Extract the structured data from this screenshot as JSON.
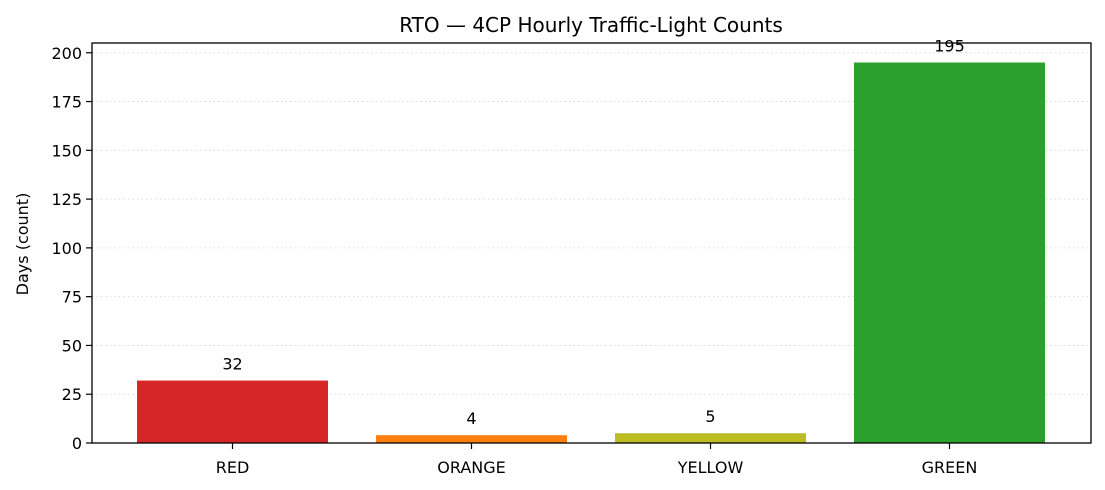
{
  "chart_data": {
    "type": "bar",
    "title": "RTO — 4CP Hourly Traffic-Light Counts",
    "xlabel": "",
    "ylabel": "Days (count)",
    "categories": [
      "RED",
      "ORANGE",
      "YELLOW",
      "GREEN"
    ],
    "values": [
      32,
      4,
      5,
      195
    ],
    "colors": [
      "#d62728",
      "#ff7f0e",
      "#bcbd22",
      "#2ca02c"
    ],
    "ylim": [
      0,
      205
    ],
    "yticks": [
      0,
      25,
      50,
      75,
      100,
      125,
      150,
      175,
      200
    ],
    "grid": "y-dotted",
    "legend": "none"
  }
}
